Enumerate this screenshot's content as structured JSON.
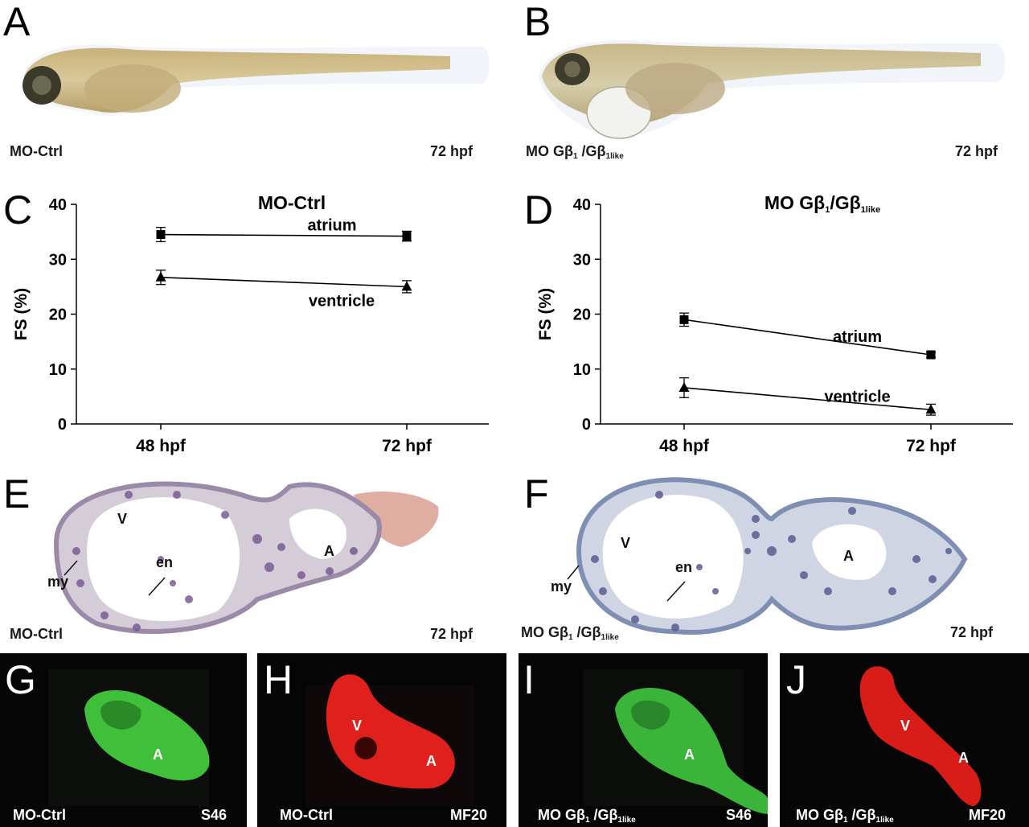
{
  "panels": {
    "A": {
      "letter": "A",
      "left_caption": "MO-Ctrl",
      "right_caption": "72 hpf"
    },
    "B": {
      "letter": "B",
      "left_caption": "MO Gβ",
      "left_sub1": "1",
      "left_mid": " /Gβ",
      "left_sub2": "1like",
      "right_caption": "72 hpf"
    },
    "C": {
      "letter": "C"
    },
    "D": {
      "letter": "D"
    },
    "E": {
      "letter": "E",
      "left_caption": "MO-Ctrl",
      "right_caption": "72 hpf",
      "label_v": "V",
      "label_a": "A",
      "label_en": "en",
      "label_my": "my"
    },
    "F": {
      "letter": "F",
      "left_caption": "MO Gβ",
      "left_sub1": "1",
      "left_mid": " /Gβ",
      "left_sub2": "1like",
      "right_caption": "72 hpf",
      "label_v": "V",
      "label_a": "A",
      "label_en": "en",
      "label_my": "my"
    },
    "G": {
      "letter": "G",
      "left_caption": "MO-Ctrl",
      "right_caption": "S46",
      "label_a": "A"
    },
    "H": {
      "letter": "H",
      "left_caption": "MO-Ctrl",
      "right_caption": "MF20",
      "label_v": "V",
      "label_a": "A"
    },
    "I": {
      "letter": "I",
      "left_caption": "MO Gβ",
      "left_sub1": "1",
      "left_mid": " /Gβ",
      "left_sub2": "1like",
      "right_caption": "S46",
      "label_a": "A"
    },
    "J": {
      "letter": "J",
      "left_caption": "MO Gβ",
      "left_sub1": "1",
      "left_mid": " /Gβ",
      "left_sub2": "1like",
      "right_caption": "MF20",
      "label_v": "V",
      "label_a": "A"
    }
  },
  "chart_data": [
    {
      "type": "line",
      "panel": "C",
      "title": "MO-Ctrl",
      "ylabel": "FS (%)",
      "xlabel": "",
      "categories": [
        "48 hpf",
        "72 hpf"
      ],
      "ylim": [
        0,
        40
      ],
      "yticks": [
        0,
        10,
        20,
        30,
        40
      ],
      "series": [
        {
          "name": "atrium",
          "marker": "square",
          "values": [
            34.5,
            34.2
          ],
          "errors": [
            1.3,
            0.9
          ]
        },
        {
          "name": "ventricle",
          "marker": "triangle",
          "values": [
            26.7,
            25.0
          ],
          "errors": [
            1.3,
            1.1
          ]
        }
      ]
    },
    {
      "type": "line",
      "panel": "D",
      "title": "MO Gβ1/Gβ1like",
      "title_main": "MO Gβ",
      "title_sub1": "1",
      "title_mid": "/Gβ",
      "title_sub2": "1like",
      "ylabel": "FS (%)",
      "xlabel": "",
      "categories": [
        "48 hpf",
        "72 hpf"
      ],
      "ylim": [
        0,
        40
      ],
      "yticks": [
        0,
        10,
        20,
        30,
        40
      ],
      "series": [
        {
          "name": "atrium",
          "marker": "square",
          "values": [
            19.0,
            12.6
          ],
          "errors": [
            1.2,
            0.5
          ]
        },
        {
          "name": "ventricle",
          "marker": "triangle",
          "values": [
            6.6,
            2.6
          ],
          "errors": [
            1.8,
            1.0
          ]
        }
      ]
    }
  ]
}
